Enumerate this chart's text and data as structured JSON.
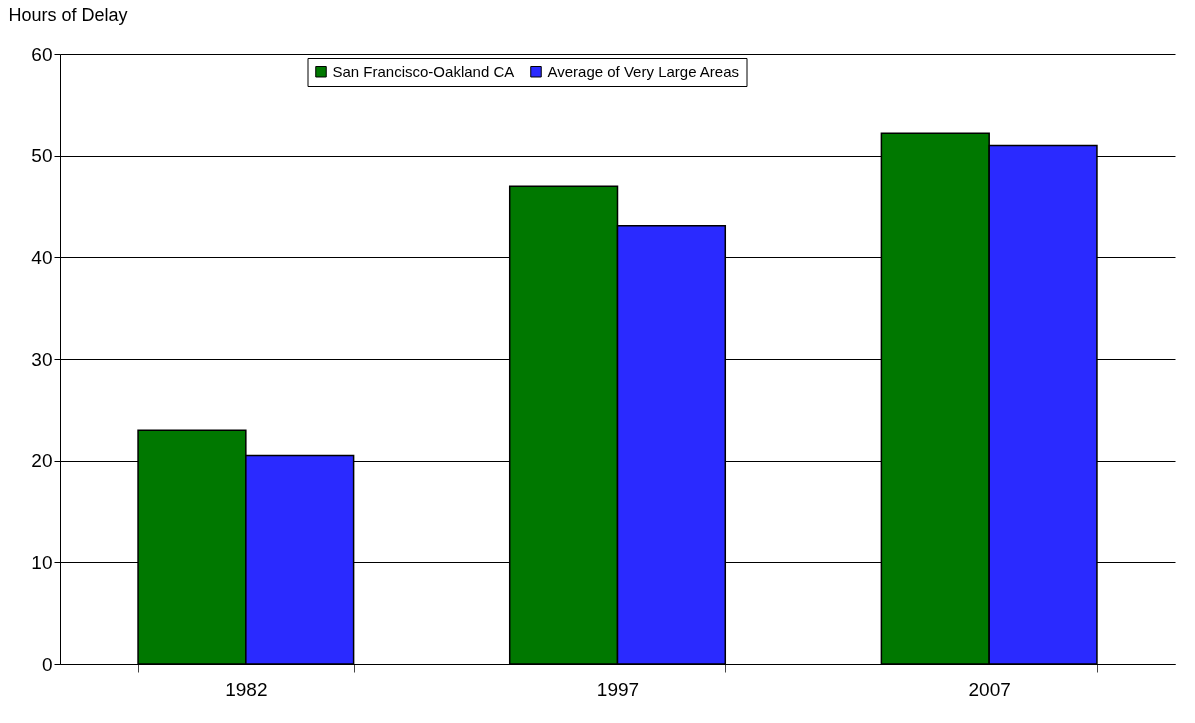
{
  "chart_data": {
    "type": "bar",
    "ylabel": "Hours of Delay",
    "categories": [
      "1982",
      "1997",
      "2007"
    ],
    "series": [
      {
        "name": "San Francisco-Oakland CA",
        "color": "#007800",
        "values": [
          23,
          47,
          52.2
        ]
      },
      {
        "name": "Average of Very Large Areas",
        "color": "#2a2aff",
        "values": [
          20.5,
          43.1,
          51
        ]
      }
    ],
    "ylim": [
      0,
      60
    ],
    "yticks": [
      0,
      10,
      20,
      30,
      40,
      50,
      60
    ],
    "grid": "y",
    "legend": "top"
  }
}
